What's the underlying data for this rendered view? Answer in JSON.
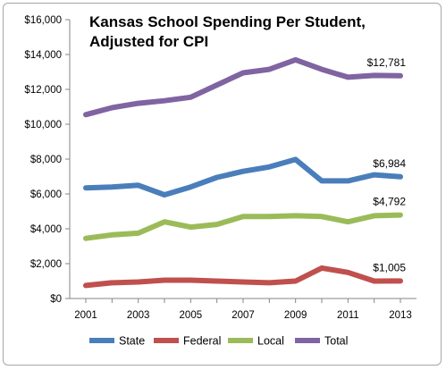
{
  "chart_data": {
    "type": "line",
    "title_lines": [
      "Kansas School Spending Per Student,",
      "Adjusted for CPI"
    ],
    "x": [
      2001,
      2002,
      2003,
      2004,
      2005,
      2006,
      2007,
      2008,
      2009,
      2010,
      2011,
      2012,
      2013
    ],
    "x_tick_labels": [
      "2001",
      "2003",
      "2005",
      "2007",
      "2009",
      "2011",
      "2013"
    ],
    "y_tick_labels": [
      "$0",
      "$2,000",
      "$4,000",
      "$6,000",
      "$8,000",
      "$10,000",
      "$12,000",
      "$14,000",
      "$16,000"
    ],
    "ylim": [
      0,
      16000
    ],
    "grid": false,
    "legend_position": "bottom",
    "series": [
      {
        "name": "State",
        "color": "#4a7ebb",
        "values": [
          6350,
          6400,
          6500,
          5950,
          6400,
          6950,
          7300,
          7550,
          7980,
          6750,
          6750,
          7100,
          6984
        ],
        "end_label": "$6,984"
      },
      {
        "name": "Federal",
        "color": "#c0504d",
        "values": [
          750,
          900,
          950,
          1050,
          1050,
          1000,
          950,
          900,
          1000,
          1750,
          1500,
          1000,
          1005
        ],
        "end_label": "$1,005"
      },
      {
        "name": "Local",
        "color": "#9bbb59",
        "values": [
          3450,
          3650,
          3750,
          4400,
          4100,
          4250,
          4700,
          4700,
          4750,
          4700,
          4400,
          4750,
          4792
        ],
        "end_label": "$4,792"
      },
      {
        "name": "Total",
        "color": "#8064a2",
        "values": [
          10550,
          10950,
          11200,
          11350,
          11550,
          12250,
          12950,
          13150,
          13700,
          13150,
          12700,
          12800,
          12781
        ],
        "end_label": "$12,781"
      }
    ]
  }
}
